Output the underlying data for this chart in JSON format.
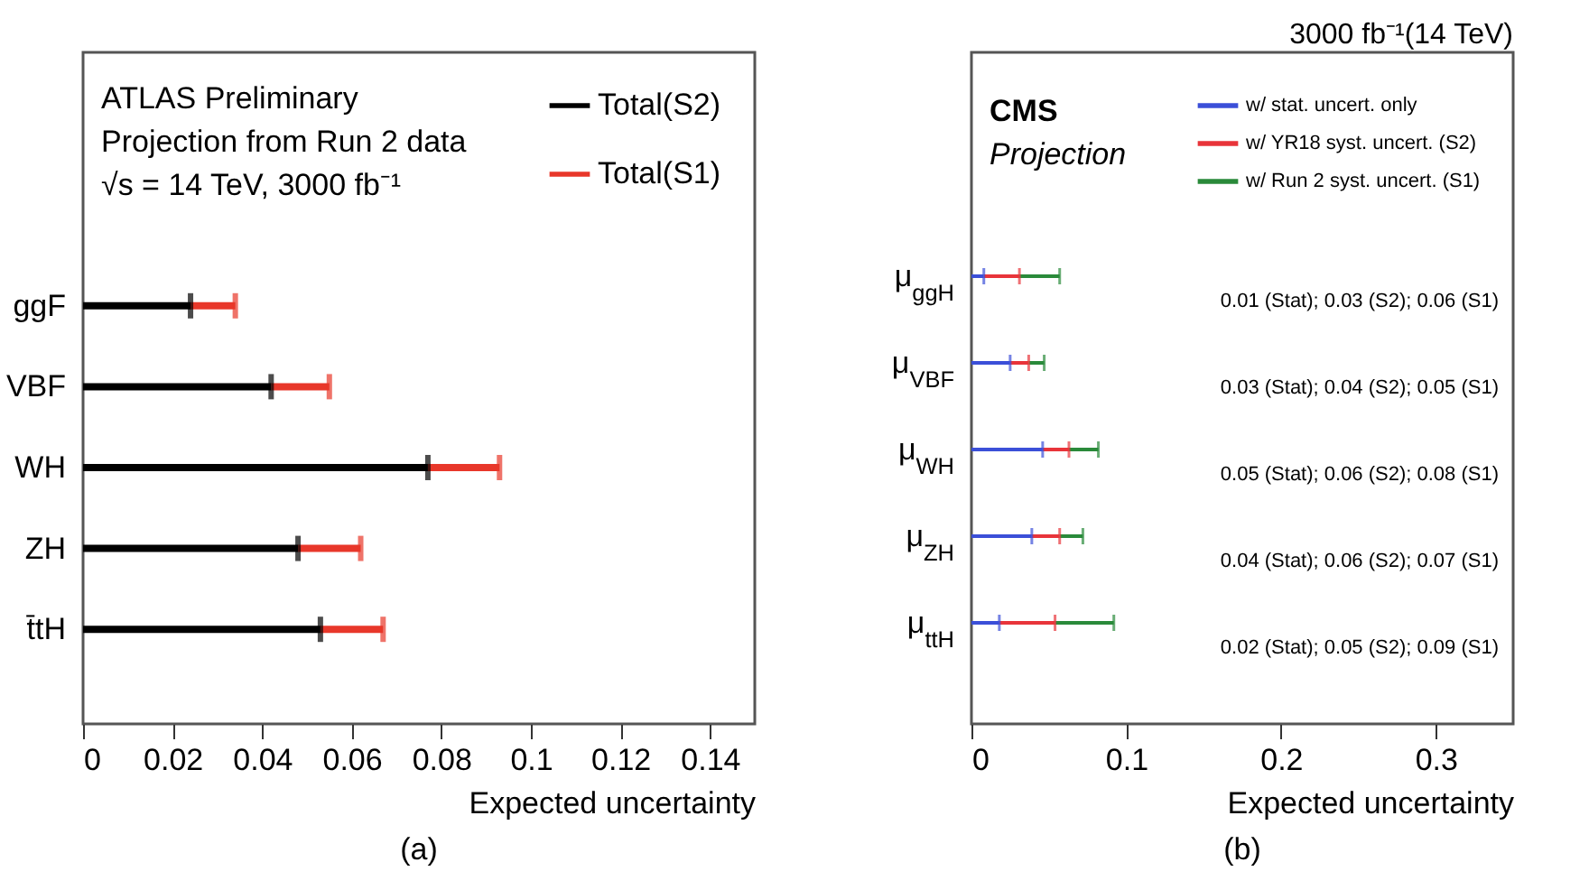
{
  "chart_data": [
    {
      "type": "bar",
      "orientation": "horizontal",
      "stacked": true,
      "categories": [
        "ggF",
        "VBF",
        "WH",
        "ZH",
        "t̄tH"
      ],
      "series": [
        {
          "name": "Total(S2)",
          "color": "#000000",
          "values": [
            0.024,
            0.042,
            0.077,
            0.048,
            0.053
          ]
        },
        {
          "name": "Total(S1)",
          "color": "#e8372a",
          "values": [
            0.01,
            0.013,
            0.016,
            0.014,
            0.014
          ]
        }
      ],
      "xlabel": "Expected uncertainty",
      "xlim": [
        0,
        0.15
      ],
      "xticks": [
        0,
        0.02,
        0.04,
        0.06,
        0.08,
        0.1,
        0.12,
        0.14
      ],
      "legend": "top right",
      "annotations": [
        "ATLAS Preliminary",
        "Projection from Run 2 data",
        "√s = 14 TeV, 3000 fb⁻¹",
        "(a)"
      ]
    },
    {
      "type": "bar",
      "orientation": "horizontal",
      "stacked": true,
      "title": "3000 fb⁻¹(14 TeV)",
      "categories": [
        "μ$_{ggH}$",
        "μ$_{VBF}$",
        "μ$_{WH}$",
        "μ$_{ZH}$",
        "μ$_{ttH}$"
      ],
      "series": [
        {
          "name": "w/ stat. uncert. only",
          "color": "#3b4fd8",
          "values": [
            0.008,
            0.025,
            0.046,
            0.039,
            0.018
          ]
        },
        {
          "name": "w/ YR18 syst. uncert. (S2)",
          "color": "#e8343a",
          "values": [
            0.023,
            0.012,
            0.017,
            0.018,
            0.036
          ]
        },
        {
          "name": "w/ Run 2 syst. uncert. (S1)",
          "color": "#2a8a3a",
          "values": [
            0.026,
            0.01,
            0.019,
            0.015,
            0.038
          ]
        }
      ],
      "xlabel": "Expected uncertainty",
      "xlim": [
        0,
        0.35
      ],
      "xticks": [
        0,
        0.1,
        0.2,
        0.3
      ],
      "legend": "top right",
      "annotations": [
        "CMS",
        "Projection",
        "0.01 (Stat); 0.03 (S2); 0.06 (S1)",
        "0.03 (Stat); 0.04 (S2); 0.05 (S1)",
        "0.05 (Stat); 0.06 (S2); 0.08 (S1)",
        "0.04 (Stat); 0.06 (S2); 0.07 (S1)",
        "0.02 (Stat); 0.05 (S2); 0.09 (S1)",
        "(b)"
      ]
    }
  ]
}
